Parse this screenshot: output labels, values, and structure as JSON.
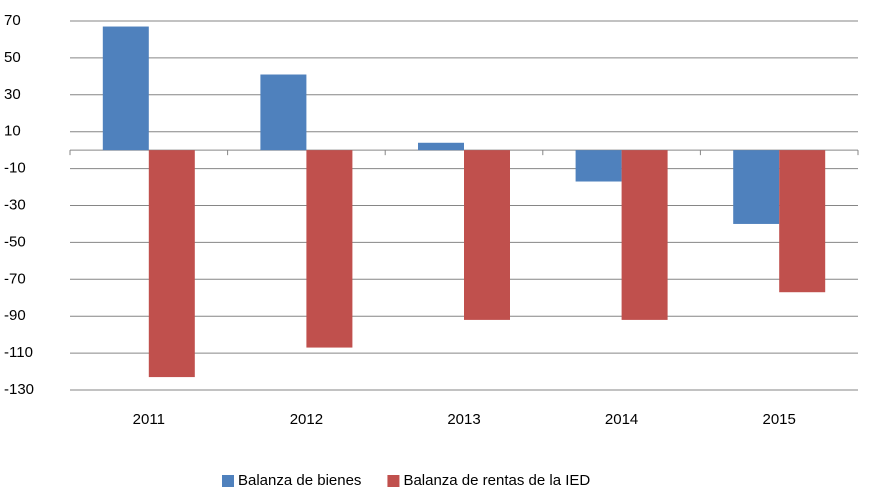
{
  "chart_data": {
    "type": "bar",
    "categories": [
      "2011",
      "2012",
      "2013",
      "2014",
      "2015"
    ],
    "series": [
      {
        "name": "Balanza de bienes",
        "color": "#4f81bd",
        "values": [
          67,
          41,
          4,
          -17,
          -40
        ]
      },
      {
        "name": "Balanza de rentas de la IED",
        "color": "#c0504d",
        "values": [
          -123,
          -107,
          -92,
          -92,
          -77
        ]
      }
    ],
    "ylim": [
      -130,
      70
    ],
    "yticks": [
      -130,
      -110,
      -90,
      -70,
      -50,
      -30,
      -10,
      10,
      30,
      50,
      70
    ],
    "grid": true,
    "legend": "bottom"
  }
}
